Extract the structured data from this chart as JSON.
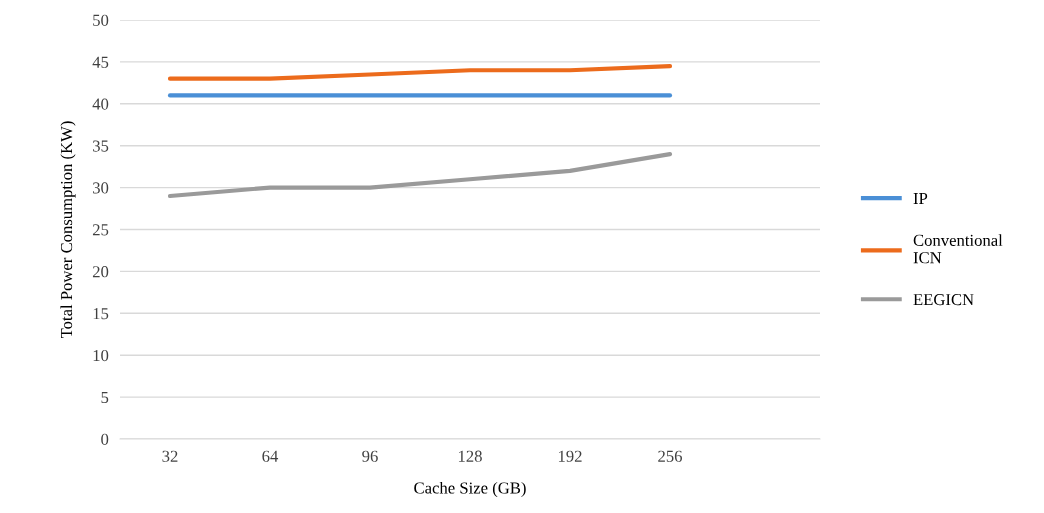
{
  "chart_data": {
    "type": "line",
    "xlabel": "Cache Size (GB)",
    "ylabel": "Total Power Consumption (KW)",
    "categories": [
      "32",
      "64",
      "96",
      "128",
      "192",
      "256",
      null
    ],
    "series": [
      {
        "name": "IP",
        "color": "#4a8fd6",
        "values": [
          41,
          41,
          41,
          41,
          41,
          41,
          null
        ]
      },
      {
        "name": "Conventional\nICN",
        "color": "#ec6b1c",
        "values": [
          43,
          43,
          43.5,
          44,
          44,
          44.5,
          null
        ]
      },
      {
        "name": "EEGICN",
        "color": "#9a9a9a",
        "values": [
          29,
          30,
          30,
          31,
          32,
          34,
          null
        ]
      }
    ],
    "ylim": [
      0,
      50
    ],
    "yticks": [
      0,
      5,
      10,
      15,
      20,
      25,
      30,
      35,
      40,
      45,
      50
    ],
    "grid": "y",
    "legend": "right",
    "marker": "none",
    "line_style": "solid"
  }
}
